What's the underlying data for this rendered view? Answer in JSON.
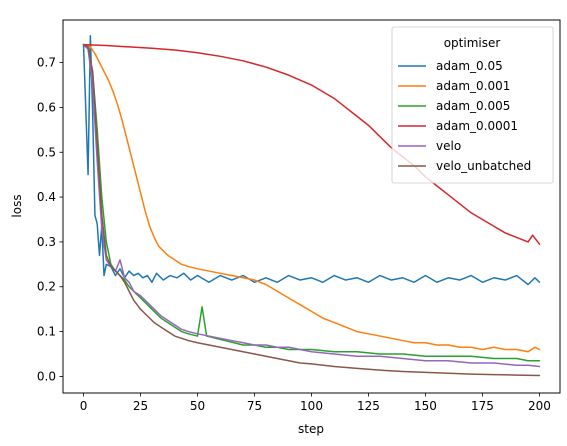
{
  "chart_data": {
    "type": "line",
    "xlabel": "step",
    "ylabel": "loss",
    "xlim": [
      -9,
      209
    ],
    "ylim": [
      -0.037,
      0.795
    ],
    "xticks": [
      0,
      25,
      50,
      75,
      100,
      125,
      150,
      175,
      200
    ],
    "yticks": [
      0.0,
      0.1,
      0.2,
      0.3,
      0.4,
      0.5,
      0.6,
      0.7
    ],
    "grid": false,
    "legend": {
      "title": "optimiser",
      "placement": "top-right"
    },
    "series": [
      {
        "name": "adam_0.05",
        "color": "#1f77b4",
        "points": [
          [
            0,
            0.74
          ],
          [
            2,
            0.45
          ],
          [
            3,
            0.76
          ],
          [
            4,
            0.59
          ],
          [
            5,
            0.36
          ],
          [
            6,
            0.34
          ],
          [
            7,
            0.27
          ],
          [
            8,
            0.335
          ],
          [
            9,
            0.225
          ],
          [
            10,
            0.25
          ],
          [
            12,
            0.245
          ],
          [
            14,
            0.225
          ],
          [
            16,
            0.24
          ],
          [
            18,
            0.22
          ],
          [
            20,
            0.235
          ],
          [
            22,
            0.225
          ],
          [
            24,
            0.23
          ],
          [
            26,
            0.22
          ],
          [
            28,
            0.225
          ],
          [
            30,
            0.21
          ],
          [
            32,
            0.23
          ],
          [
            35,
            0.215
          ],
          [
            38,
            0.225
          ],
          [
            41,
            0.22
          ],
          [
            44,
            0.23
          ],
          [
            47,
            0.215
          ],
          [
            50,
            0.225
          ],
          [
            55,
            0.21
          ],
          [
            60,
            0.225
          ],
          [
            65,
            0.215
          ],
          [
            70,
            0.225
          ],
          [
            75,
            0.21
          ],
          [
            80,
            0.22
          ],
          [
            85,
            0.21
          ],
          [
            90,
            0.225
          ],
          [
            95,
            0.215
          ],
          [
            100,
            0.22
          ],
          [
            105,
            0.21
          ],
          [
            110,
            0.225
          ],
          [
            115,
            0.215
          ],
          [
            120,
            0.22
          ],
          [
            125,
            0.21
          ],
          [
            130,
            0.225
          ],
          [
            135,
            0.215
          ],
          [
            140,
            0.22
          ],
          [
            145,
            0.21
          ],
          [
            150,
            0.225
          ],
          [
            155,
            0.21
          ],
          [
            160,
            0.22
          ],
          [
            165,
            0.215
          ],
          [
            170,
            0.225
          ],
          [
            175,
            0.21
          ],
          [
            180,
            0.22
          ],
          [
            185,
            0.215
          ],
          [
            190,
            0.225
          ],
          [
            195,
            0.205
          ],
          [
            198,
            0.22
          ],
          [
            200,
            0.21
          ]
        ]
      },
      {
        "name": "adam_0.001",
        "color": "#ff7f0e",
        "points": [
          [
            0,
            0.74
          ],
          [
            3,
            0.735
          ],
          [
            5,
            0.72
          ],
          [
            7,
            0.7
          ],
          [
            9,
            0.68
          ],
          [
            11,
            0.66
          ],
          [
            13,
            0.635
          ],
          [
            15,
            0.605
          ],
          [
            17,
            0.57
          ],
          [
            19,
            0.53
          ],
          [
            21,
            0.49
          ],
          [
            23,
            0.45
          ],
          [
            25,
            0.41
          ],
          [
            27,
            0.37
          ],
          [
            29,
            0.335
          ],
          [
            31,
            0.31
          ],
          [
            33,
            0.29
          ],
          [
            35,
            0.28
          ],
          [
            37,
            0.27
          ],
          [
            40,
            0.26
          ],
          [
            43,
            0.25
          ],
          [
            46,
            0.245
          ],
          [
            50,
            0.24
          ],
          [
            55,
            0.235
          ],
          [
            60,
            0.23
          ],
          [
            65,
            0.225
          ],
          [
            70,
            0.22
          ],
          [
            75,
            0.215
          ],
          [
            80,
            0.205
          ],
          [
            85,
            0.19
          ],
          [
            90,
            0.175
          ],
          [
            95,
            0.16
          ],
          [
            100,
            0.145
          ],
          [
            105,
            0.13
          ],
          [
            110,
            0.12
          ],
          [
            115,
            0.11
          ],
          [
            120,
            0.1
          ],
          [
            125,
            0.095
          ],
          [
            130,
            0.09
          ],
          [
            135,
            0.085
          ],
          [
            140,
            0.08
          ],
          [
            145,
            0.075
          ],
          [
            150,
            0.075
          ],
          [
            155,
            0.07
          ],
          [
            160,
            0.07
          ],
          [
            165,
            0.065
          ],
          [
            170,
            0.065
          ],
          [
            175,
            0.06
          ],
          [
            180,
            0.065
          ],
          [
            185,
            0.06
          ],
          [
            190,
            0.06
          ],
          [
            195,
            0.055
          ],
          [
            198,
            0.065
          ],
          [
            200,
            0.06
          ]
        ]
      },
      {
        "name": "adam_0.005",
        "color": "#2ca02c",
        "points": [
          [
            0,
            0.74
          ],
          [
            2,
            0.73
          ],
          [
            4,
            0.68
          ],
          [
            6,
            0.55
          ],
          [
            8,
            0.4
          ],
          [
            10,
            0.3
          ],
          [
            12,
            0.25
          ],
          [
            14,
            0.235
          ],
          [
            16,
            0.225
          ],
          [
            18,
            0.215
          ],
          [
            20,
            0.2
          ],
          [
            22,
            0.19
          ],
          [
            25,
            0.175
          ],
          [
            28,
            0.16
          ],
          [
            31,
            0.145
          ],
          [
            34,
            0.13
          ],
          [
            37,
            0.12
          ],
          [
            40,
            0.11
          ],
          [
            43,
            0.1
          ],
          [
            46,
            0.095
          ],
          [
            50,
            0.09
          ],
          [
            52,
            0.155
          ],
          [
            54,
            0.09
          ],
          [
            58,
            0.085
          ],
          [
            62,
            0.08
          ],
          [
            66,
            0.075
          ],
          [
            70,
            0.07
          ],
          [
            75,
            0.07
          ],
          [
            80,
            0.065
          ],
          [
            85,
            0.065
          ],
          [
            90,
            0.06
          ],
          [
            95,
            0.06
          ],
          [
            100,
            0.06
          ],
          [
            110,
            0.055
          ],
          [
            120,
            0.055
          ],
          [
            130,
            0.05
          ],
          [
            140,
            0.05
          ],
          [
            150,
            0.045
          ],
          [
            160,
            0.045
          ],
          [
            170,
            0.045
          ],
          [
            180,
            0.04
          ],
          [
            190,
            0.04
          ],
          [
            195,
            0.035
          ],
          [
            200,
            0.035
          ]
        ]
      },
      {
        "name": "adam_0.0001",
        "color": "#d62728",
        "points": [
          [
            0,
            0.74
          ],
          [
            10,
            0.738
          ],
          [
            20,
            0.735
          ],
          [
            30,
            0.732
          ],
          [
            40,
            0.728
          ],
          [
            50,
            0.722
          ],
          [
            60,
            0.714
          ],
          [
            70,
            0.704
          ],
          [
            80,
            0.69
          ],
          [
            90,
            0.672
          ],
          [
            100,
            0.65
          ],
          [
            105,
            0.635
          ],
          [
            110,
            0.62
          ],
          [
            115,
            0.6
          ],
          [
            120,
            0.58
          ],
          [
            125,
            0.56
          ],
          [
            130,
            0.535
          ],
          [
            135,
            0.51
          ],
          [
            140,
            0.49
          ],
          [
            145,
            0.47
          ],
          [
            150,
            0.445
          ],
          [
            155,
            0.425
          ],
          [
            160,
            0.405
          ],
          [
            165,
            0.385
          ],
          [
            170,
            0.365
          ],
          [
            175,
            0.35
          ],
          [
            180,
            0.335
          ],
          [
            185,
            0.32
          ],
          [
            190,
            0.31
          ],
          [
            195,
            0.3
          ],
          [
            197,
            0.315
          ],
          [
            200,
            0.295
          ]
        ]
      },
      {
        "name": "velo",
        "color": "#9467bd",
        "points": [
          [
            0,
            0.74
          ],
          [
            2,
            0.73
          ],
          [
            4,
            0.65
          ],
          [
            6,
            0.48
          ],
          [
            8,
            0.33
          ],
          [
            10,
            0.26
          ],
          [
            12,
            0.245
          ],
          [
            14,
            0.235
          ],
          [
            16,
            0.26
          ],
          [
            18,
            0.22
          ],
          [
            20,
            0.21
          ],
          [
            22,
            0.19
          ],
          [
            25,
            0.18
          ],
          [
            28,
            0.165
          ],
          [
            31,
            0.15
          ],
          [
            34,
            0.135
          ],
          [
            37,
            0.125
          ],
          [
            40,
            0.115
          ],
          [
            43,
            0.105
          ],
          [
            46,
            0.1
          ],
          [
            50,
            0.095
          ],
          [
            55,
            0.09
          ],
          [
            60,
            0.085
          ],
          [
            65,
            0.08
          ],
          [
            70,
            0.075
          ],
          [
            75,
            0.07
          ],
          [
            80,
            0.07
          ],
          [
            85,
            0.065
          ],
          [
            90,
            0.065
          ],
          [
            95,
            0.06
          ],
          [
            100,
            0.055
          ],
          [
            110,
            0.05
          ],
          [
            120,
            0.045
          ],
          [
            130,
            0.045
          ],
          [
            140,
            0.04
          ],
          [
            150,
            0.035
          ],
          [
            160,
            0.035
          ],
          [
            170,
            0.03
          ],
          [
            180,
            0.03
          ],
          [
            190,
            0.025
          ],
          [
            195,
            0.025
          ],
          [
            200,
            0.022
          ]
        ]
      },
      {
        "name": "velo_unbatched",
        "color": "#8c564b",
        "points": [
          [
            0,
            0.74
          ],
          [
            2,
            0.735
          ],
          [
            4,
            0.68
          ],
          [
            6,
            0.52
          ],
          [
            8,
            0.36
          ],
          [
            10,
            0.27
          ],
          [
            12,
            0.245
          ],
          [
            14,
            0.235
          ],
          [
            16,
            0.225
          ],
          [
            18,
            0.21
          ],
          [
            20,
            0.19
          ],
          [
            22,
            0.17
          ],
          [
            25,
            0.15
          ],
          [
            28,
            0.135
          ],
          [
            31,
            0.12
          ],
          [
            34,
            0.11
          ],
          [
            37,
            0.1
          ],
          [
            40,
            0.09
          ],
          [
            43,
            0.085
          ],
          [
            46,
            0.08
          ],
          [
            50,
            0.075
          ],
          [
            55,
            0.07
          ],
          [
            60,
            0.065
          ],
          [
            65,
            0.06
          ],
          [
            70,
            0.055
          ],
          [
            75,
            0.05
          ],
          [
            80,
            0.045
          ],
          [
            85,
            0.04
          ],
          [
            90,
            0.035
          ],
          [
            95,
            0.03
          ],
          [
            100,
            0.028
          ],
          [
            110,
            0.022
          ],
          [
            120,
            0.018
          ],
          [
            130,
            0.014
          ],
          [
            140,
            0.011
          ],
          [
            150,
            0.009
          ],
          [
            160,
            0.007
          ],
          [
            170,
            0.005
          ],
          [
            180,
            0.004
          ],
          [
            190,
            0.003
          ],
          [
            200,
            0.002
          ]
        ]
      }
    ]
  }
}
